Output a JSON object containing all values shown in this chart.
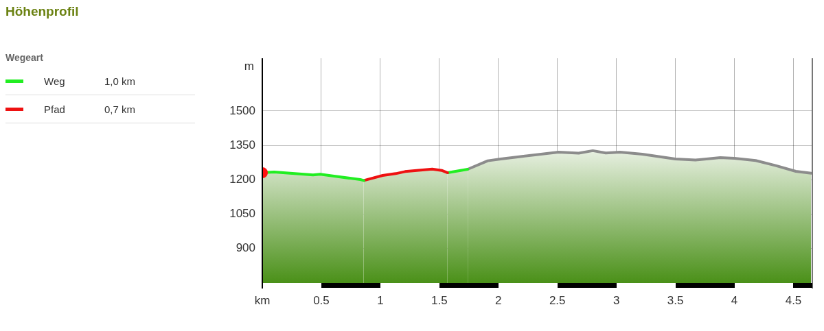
{
  "chart_data": {
    "type": "area",
    "title": "Höhenprofil",
    "legend_title": "Wegeart",
    "xlabel": "km",
    "ylabel": "m",
    "annotations": [
      "1,0 km",
      "0,7 km"
    ],
    "xlim": [
      0,
      4.66
    ],
    "xticks": [
      0.5,
      1,
      1.5,
      2,
      2.5,
      3,
      3.5,
      4,
      4.5
    ],
    "ylim": [
      750,
      1730
    ],
    "yticks": [
      900,
      1050,
      1200,
      1350,
      1500
    ],
    "grid": true,
    "legend": "left",
    "marker": "none",
    "line_style": "solid",
    "series": [
      {
        "name": "Weg",
        "color": "#22ee22",
        "x": [
          0,
          0.1,
          0.43,
          0.49,
          0.83,
          0.86
        ],
        "values": [
          1231,
          1234,
          1221,
          1224,
          1201,
          1197
        ]
      },
      {
        "name": "Pfad",
        "color": "#ee1111",
        "x": [
          0.86,
          1.02,
          1.13,
          1.21,
          1.44,
          1.52,
          1.57
        ],
        "values": [
          1197,
          1219,
          1227,
          1236,
          1247,
          1241,
          1231
        ]
      },
      {
        "color": "#22ee22",
        "x": [
          1.57,
          1.74
        ],
        "values": [
          1231,
          1246
        ]
      },
      {
        "color": "#8c8c8c",
        "x": [
          1.74,
          1.91,
          2.02,
          2.2,
          2.51,
          2.68,
          2.8,
          2.91,
          3.03,
          3.22,
          3.5,
          3.67,
          3.88,
          4,
          4.18,
          4.35,
          4.52,
          4.65
        ],
        "values": [
          1246,
          1283,
          1291,
          1302,
          1321,
          1316,
          1327,
          1317,
          1321,
          1312,
          1291,
          1286,
          1297,
          1294,
          1284,
          1262,
          1237,
          1229
        ]
      },
      {
        "type": "scatter",
        "marker": "circle",
        "color": "#ff1111",
        "x": [
          0
        ],
        "values": [
          1231
        ]
      }
    ]
  }
}
